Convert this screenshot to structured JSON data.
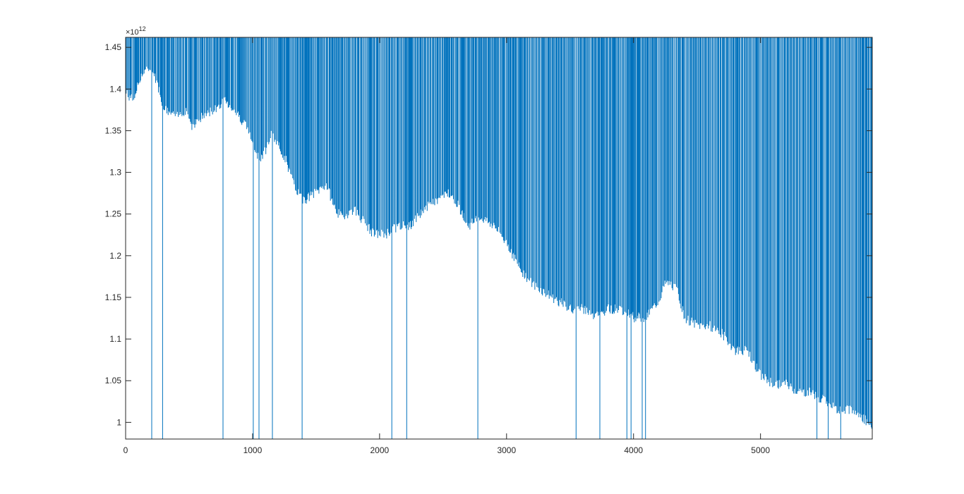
{
  "chart_data": {
    "type": "line",
    "title": "",
    "xlabel": "",
    "ylabel": "",
    "xlim": [
      0,
      5880
    ],
    "ylim": [
      980000000000.0,
      1462000000000.0
    ],
    "y_exponent_label": "×10",
    "y_exponent": "12",
    "x_ticks": [
      0,
      1000,
      2000,
      3000,
      4000,
      5000
    ],
    "x_tick_labels": [
      "0",
      "1000",
      "2000",
      "3000",
      "4000",
      "5000"
    ],
    "y_ticks": [
      1.0,
      1.05,
      1.1,
      1.15,
      1.2,
      1.25,
      1.3,
      1.35,
      1.4,
      1.45
    ],
    "y_tick_labels": [
      "1",
      "1.05",
      "1.1",
      "1.15",
      "1.2",
      "1.25",
      "1.3",
      "1.35",
      "1.4",
      "1.45"
    ],
    "grid": false,
    "line_color": "#0072BD",
    "description_points": {
      "x": [
        0,
        60,
        120,
        200,
        250,
        300,
        400,
        480,
        520,
        600,
        700,
        780,
        850,
        950,
        1000,
        1050,
        1100,
        1150,
        1260,
        1320,
        1400,
        1500,
        1580,
        1650,
        1700,
        1800,
        1900,
        1950,
        2050,
        2150,
        2250,
        2350,
        2450,
        2550,
        2600,
        2700,
        2800,
        2900,
        2950,
        3000,
        3100,
        3200,
        3300,
        3400,
        3500,
        3600,
        3700,
        3800,
        3900,
        4000,
        4100,
        4200,
        4250,
        4300,
        4350,
        4400,
        4500,
        4600,
        4700,
        4800,
        4900,
        5000,
        5100,
        5200,
        5300,
        5400,
        5500,
        5600,
        5700,
        5800,
        5880
      ],
      "y": [
        1390000000000.0,
        1380000000000.0,
        1410000000000.0,
        1420000000000.0,
        1400000000000.0,
        1370000000000.0,
        1360000000000.0,
        1370000000000.0,
        1350000000000.0,
        1360000000000.0,
        1370000000000.0,
        1380000000000.0,
        1370000000000.0,
        1350000000000.0,
        1330000000000.0,
        1310000000000.0,
        1320000000000.0,
        1340000000000.0,
        1310000000000.0,
        1280000000000.0,
        1260000000000.0,
        1270000000000.0,
        1280000000000.0,
        1250000000000.0,
        1240000000000.0,
        1250000000000.0,
        1230000000000.0,
        1220000000000.0,
        1220000000000.0,
        1230000000000.0,
        1230000000000.0,
        1250000000000.0,
        1260000000000.0,
        1270000000000.0,
        1260000000000.0,
        1230000000000.0,
        1240000000000.0,
        1230000000000.0,
        1220000000000.0,
        1210000000000.0,
        1180000000000.0,
        1160000000000.0,
        1150000000000.0,
        1140000000000.0,
        1130000000000.0,
        1130000000000.0,
        1120000000000.0,
        1130000000000.0,
        1130000000000.0,
        1120000000000.0,
        1120000000000.0,
        1140000000000.0,
        1160000000000.0,
        1160000000000.0,
        1150000000000.0,
        1120000000000.0,
        1110000000000.0,
        1110000000000.0,
        1100000000000.0,
        1080000000000.0,
        1080000000000.0,
        1050000000000.0,
        1040000000000.0,
        1040000000000.0,
        1030000000000.0,
        1030000000000.0,
        1020000000000.0,
        1010000000000.0,
        1010000000000.0,
        1000000000000.0,
        990000000000.0
      ]
    }
  }
}
